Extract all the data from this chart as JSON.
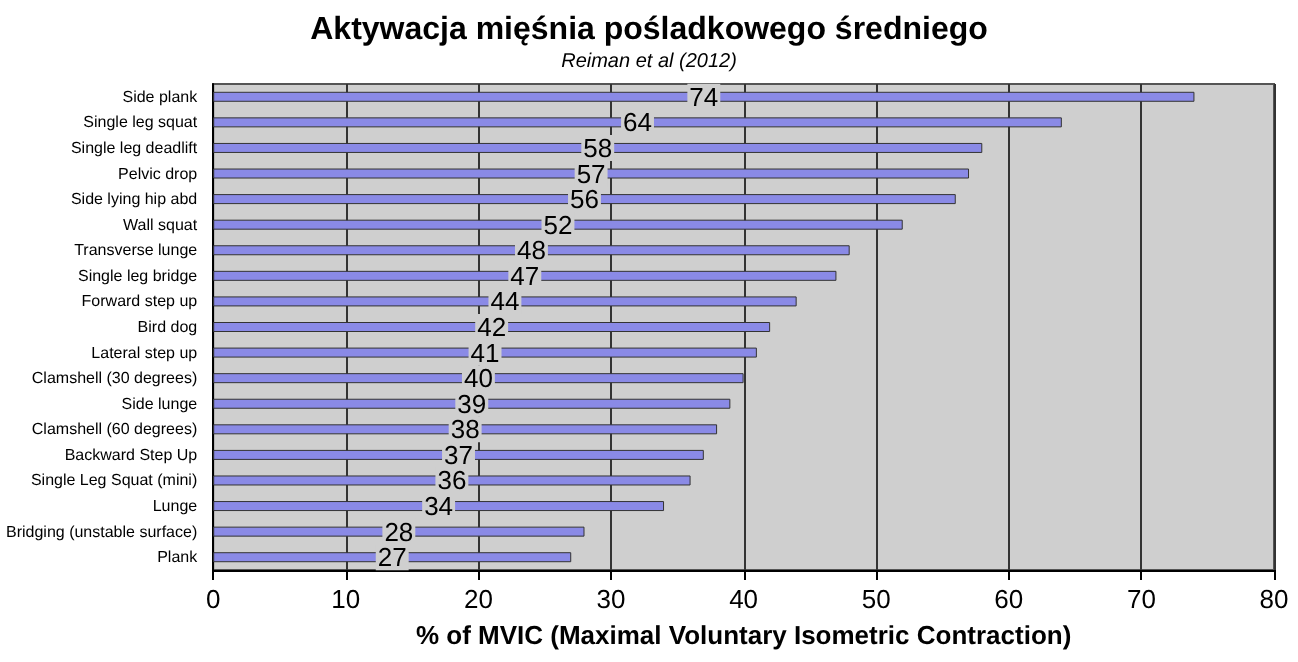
{
  "chart_data": {
    "type": "bar",
    "orientation": "horizontal",
    "title": "Aktywacja mięśnia pośladkowego średniego",
    "subtitle": "Reiman et al (2012)",
    "xlabel": "% of MVIC (Maximal Voluntary Isometric Contraction)",
    "categories": [
      "Side plank",
      "Single leg squat",
      "Single leg deadlift",
      "Pelvic drop",
      "Side lying hip abd",
      "Wall squat",
      "Transverse lunge",
      "Single leg bridge",
      "Forward step up",
      "Bird dog",
      "Lateral step up",
      "Clamshell (30 degrees)",
      "Side lunge",
      "Clamshell (60 degrees)",
      "Backward Step Up",
      "Single Leg Squat (mini)",
      "Lunge",
      "Bridging (unstable surface)",
      "Plank"
    ],
    "values": [
      74,
      64,
      58,
      57,
      56,
      52,
      48,
      47,
      44,
      42,
      41,
      40,
      39,
      38,
      37,
      36,
      34,
      28,
      27
    ],
    "color": "#8a8ae6",
    "xlim": [
      0,
      80
    ],
    "xticks": [
      0,
      10,
      20,
      30,
      40,
      50,
      60,
      70,
      80
    ],
    "grid": "x",
    "data_labels": true
  }
}
